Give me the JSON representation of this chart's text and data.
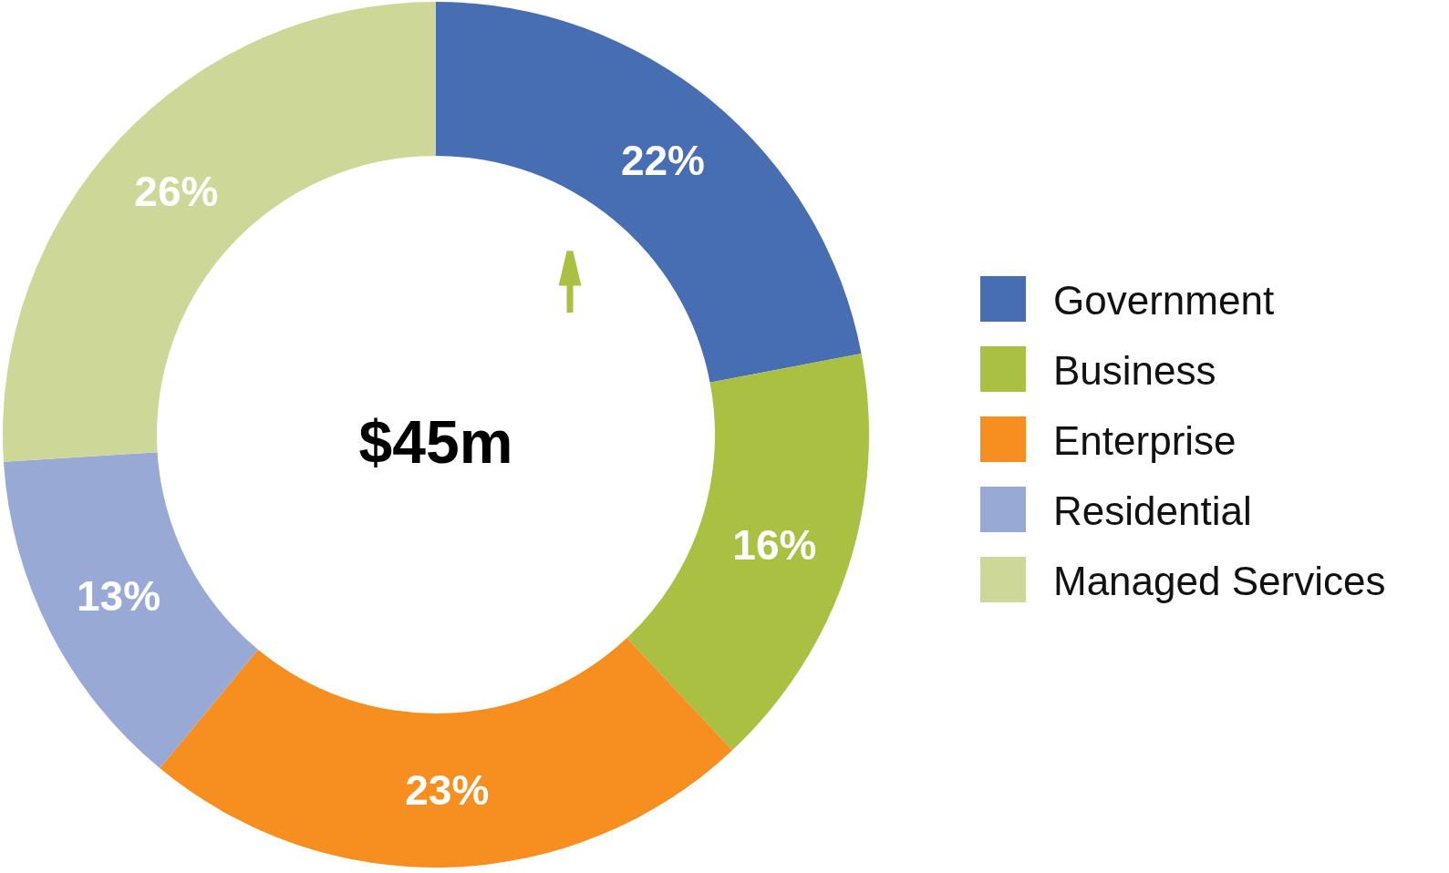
{
  "chart_data": {
    "type": "donut",
    "title": "$45m",
    "categories": [
      "Government",
      "Business",
      "Enterprise",
      "Residential",
      "Managed Services"
    ],
    "values": [
      22,
      16,
      23,
      13,
      26
    ],
    "value_labels": [
      "22%",
      "16%",
      "23%",
      "13%",
      "26%"
    ],
    "colors": [
      "#476db3",
      "#a9c043",
      "#f68e20",
      "#99a9d6",
      "#cdd797"
    ],
    "legend": "right"
  }
}
